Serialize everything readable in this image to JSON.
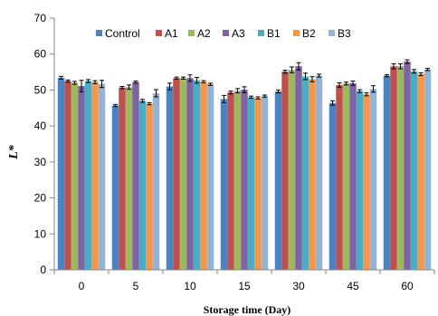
{
  "chart_data": {
    "type": "bar",
    "xlabel": "Storage time (Day)",
    "ylabel": "L*",
    "ylim": [
      0,
      70
    ],
    "yticks": [
      0,
      10,
      20,
      30,
      40,
      50,
      60,
      70
    ],
    "categories": [
      "0",
      "5",
      "10",
      "15",
      "30",
      "45",
      "60"
    ],
    "legend_position": "top",
    "grid": false,
    "series": [
      {
        "name": "Control",
        "color": "#4F81BD",
        "values": [
          53.4,
          45.7,
          51.0,
          47.5,
          49.6,
          46.4,
          54.0
        ],
        "errors": [
          0.4,
          0.3,
          0.9,
          1.0,
          0.4,
          0.6,
          0.3
        ]
      },
      {
        "name": "A1",
        "color": "#C0504D",
        "values": [
          52.5,
          50.7,
          53.3,
          49.3,
          55.1,
          51.4,
          56.6
        ],
        "errors": [
          0.3,
          0.3,
          0.3,
          0.4,
          0.4,
          0.6,
          0.7
        ]
      },
      {
        "name": "A2",
        "color": "#9BBB59",
        "values": [
          52.0,
          50.8,
          53.3,
          49.8,
          55.6,
          51.8,
          56.6
        ],
        "errors": [
          0.4,
          0.6,
          0.3,
          0.6,
          0.8,
          0.4,
          0.7
        ]
      },
      {
        "name": "A3",
        "color": "#8064A2",
        "values": [
          51.1,
          52.2,
          53.3,
          50.1,
          56.6,
          51.9,
          57.9
        ],
        "errors": [
          1.6,
          0.3,
          0.9,
          0.8,
          1.0,
          0.6,
          0.5
        ]
      },
      {
        "name": "B1",
        "color": "#4BACC6",
        "values": [
          52.5,
          47.0,
          52.7,
          48.0,
          53.8,
          49.7,
          55.2
        ],
        "errors": [
          0.4,
          0.4,
          0.8,
          0.3,
          0.9,
          0.4,
          0.5
        ]
      },
      {
        "name": "B2",
        "color": "#F79646",
        "values": [
          52.2,
          46.2,
          52.3,
          47.8,
          53.0,
          48.8,
          54.4
        ],
        "errors": [
          0.4,
          0.3,
          0.3,
          0.3,
          0.7,
          0.4,
          0.4
        ]
      },
      {
        "name": "B3",
        "color": "#95B3D7",
        "values": [
          51.7,
          49.1,
          51.6,
          48.3,
          54.0,
          50.3,
          55.7
        ],
        "errors": [
          1.0,
          1.0,
          0.3,
          0.3,
          0.4,
          0.9,
          0.3
        ]
      }
    ]
  }
}
